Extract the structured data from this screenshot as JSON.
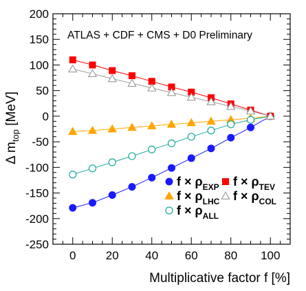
{
  "chart_data": {
    "type": "line",
    "title": "ATLAS + CDF + CMS + D0 Preliminary",
    "xlabel": "Multiplicative factor f  [%]",
    "ylabel": {
      "main": "Δ m",
      "sub": "top",
      "unit": " [MeV]"
    },
    "xlim": [
      -10,
      110
    ],
    "ylim": [
      -250,
      200
    ],
    "x_ticks": [
      0,
      20,
      40,
      60,
      80,
      100
    ],
    "y_ticks": [
      -250,
      -200,
      -150,
      -100,
      -50,
      0,
      50,
      100,
      150,
      200
    ],
    "grid": false,
    "legend_position": "lower-right",
    "x": [
      0,
      10,
      20,
      30,
      40,
      50,
      60,
      70,
      80,
      90,
      100
    ],
    "series": [
      {
        "key": "exp",
        "name": "f × ρ_EXP",
        "legend_sub": "EXP",
        "color": "#1a1aff",
        "marker": "circle-filled",
        "values": [
          -179,
          -169,
          -154,
          -138,
          -120,
          -101,
          -82,
          -63,
          -42,
          -22,
          0
        ]
      },
      {
        "key": "lhc",
        "name": "f × ρ_LHC",
        "legend_sub": "LHC",
        "color": "#ffa500",
        "marker": "triangle-filled",
        "values": [
          -30,
          -28,
          -25,
          -22,
          -19,
          -16,
          -13,
          -10,
          -7,
          -4,
          0
        ]
      },
      {
        "key": "all",
        "name": "f × ρ_ALL",
        "legend_sub": "ALL",
        "color": "#1aa89a",
        "marker": "circle-open",
        "values": [
          -114,
          -102,
          -90,
          -78,
          -65,
          -53,
          -40,
          -28,
          -16,
          -7,
          0
        ]
      },
      {
        "key": "tev",
        "name": "f × ρ_TEV",
        "legend_sub": "TEV",
        "color": "#ff0000",
        "marker": "square-filled",
        "values": [
          110,
          100,
          89,
          79,
          68,
          57,
          47,
          36,
          24,
          12,
          0
        ]
      },
      {
        "key": "col",
        "name": "f × ρ_COL",
        "legend_sub": "COL",
        "color": "#999999",
        "marker": "triangle-open",
        "values": [
          92,
          83,
          73,
          64,
          55,
          46,
          37,
          28,
          19,
          10,
          0
        ]
      }
    ],
    "legend_prefix": "f × ρ"
  }
}
